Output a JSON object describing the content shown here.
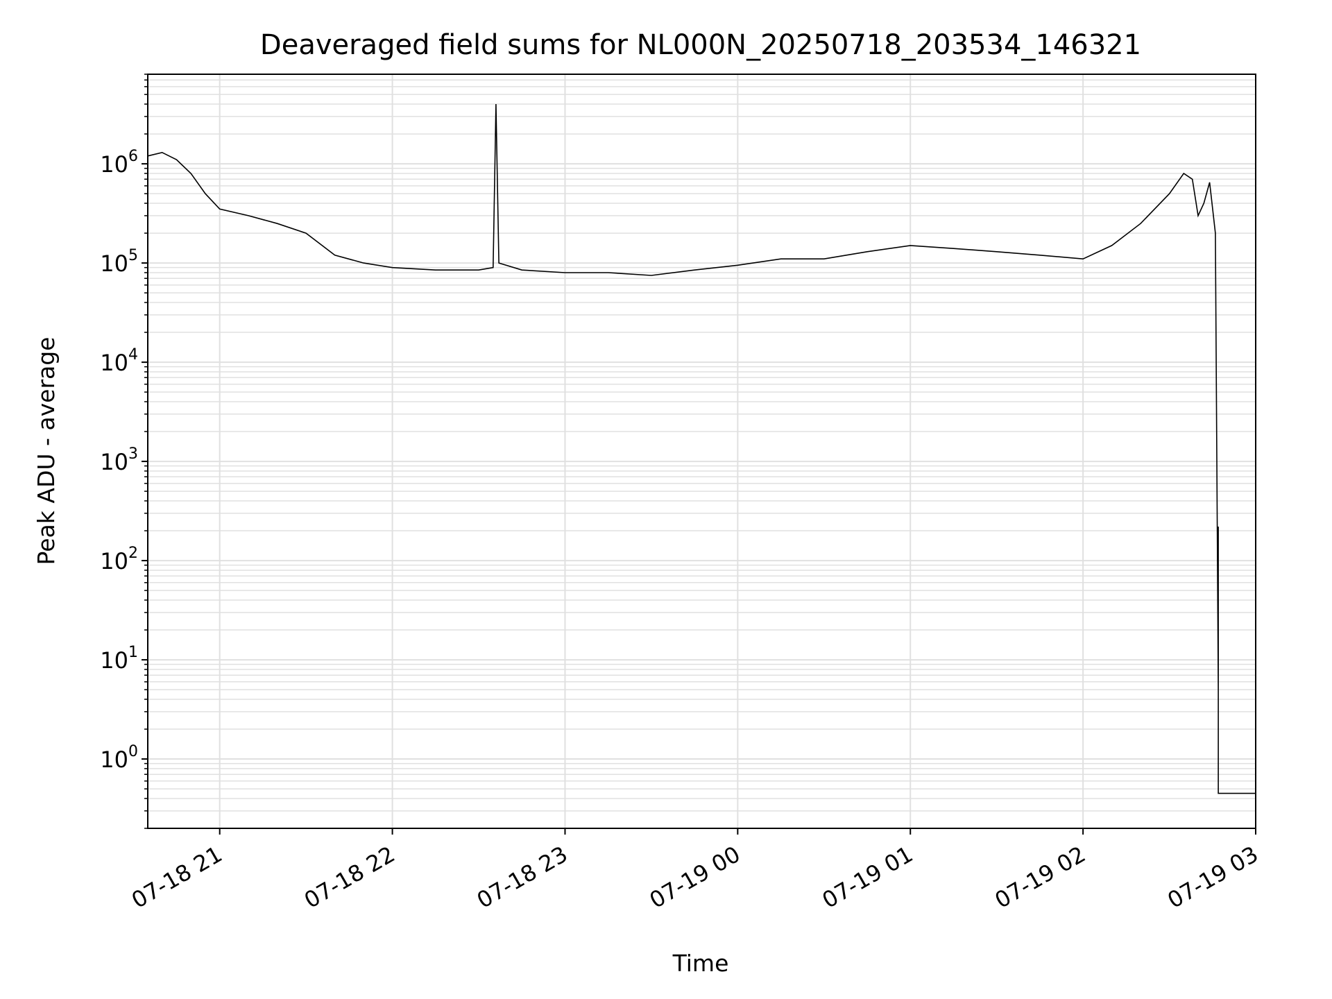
{
  "chart_data": {
    "type": "line",
    "title": "Deaveraged field sums for NL000N_20250718_203534_146321",
    "xlabel": "Time",
    "ylabel": "Peak ADU - average",
    "yscale": "log",
    "ylim": [
      0.2,
      8000000
    ],
    "xlim": [
      "2025-07-18 20:35",
      "2025-07-19 03:00"
    ],
    "grid": true,
    "legend": "none",
    "line_color": "#000000",
    "grid_color": "#e0e0e0",
    "x_ticks": [
      {
        "value": "2025-07-18 21:00",
        "label": "07-18 21"
      },
      {
        "value": "2025-07-18 22:00",
        "label": "07-18 22"
      },
      {
        "value": "2025-07-18 23:00",
        "label": "07-18 23"
      },
      {
        "value": "2025-07-19 00:00",
        "label": "07-19 00"
      },
      {
        "value": "2025-07-19 01:00",
        "label": "07-19 01"
      },
      {
        "value": "2025-07-19 02:00",
        "label": "07-19 02"
      },
      {
        "value": "2025-07-19 03:00",
        "label": "07-19 03"
      }
    ],
    "y_ticks": [
      {
        "value": 1,
        "base": "10",
        "exp": "0"
      },
      {
        "value": 10,
        "base": "10",
        "exp": "1"
      },
      {
        "value": 100,
        "base": "10",
        "exp": "2"
      },
      {
        "value": 1000,
        "base": "10",
        "exp": "3"
      },
      {
        "value": 10000,
        "base": "10",
        "exp": "4"
      },
      {
        "value": 100000,
        "base": "10",
        "exp": "5"
      },
      {
        "value": 1000000,
        "base": "10",
        "exp": "6"
      }
    ],
    "series": [
      {
        "x": [
          "2025-07-18 20:35",
          "2025-07-18 20:40",
          "2025-07-18 20:45",
          "2025-07-18 20:50",
          "2025-07-18 20:55",
          "2025-07-18 21:00",
          "2025-07-18 21:10",
          "2025-07-18 21:20",
          "2025-07-18 21:30",
          "2025-07-18 21:40",
          "2025-07-18 21:50",
          "2025-07-18 22:00",
          "2025-07-18 22:15",
          "2025-07-18 22:30",
          "2025-07-18 22:35",
          "2025-07-18 22:36",
          "2025-07-18 22:37",
          "2025-07-18 22:45",
          "2025-07-18 23:00",
          "2025-07-18 23:15",
          "2025-07-18 23:30",
          "2025-07-18 23:45",
          "2025-07-19 00:00",
          "2025-07-19 00:15",
          "2025-07-19 00:30",
          "2025-07-19 00:45",
          "2025-07-19 01:00",
          "2025-07-19 01:15",
          "2025-07-19 01:30",
          "2025-07-19 01:45",
          "2025-07-19 02:00",
          "2025-07-19 02:10",
          "2025-07-19 02:20",
          "2025-07-19 02:30",
          "2025-07-19 02:35",
          "2025-07-19 02:38",
          "2025-07-19 02:40",
          "2025-07-19 02:42",
          "2025-07-19 02:44",
          "2025-07-19 02:46",
          "2025-07-19 02:47",
          "2025-07-19 02:47",
          "2025-07-19 02:47",
          "2025-07-19 02:48",
          "2025-07-19 02:55",
          "2025-07-19 03:00"
        ],
        "y": [
          1200000,
          1300000,
          1100000,
          800000,
          500000,
          350000,
          300000,
          250000,
          200000,
          120000,
          100000,
          90000,
          85000,
          85000,
          90000,
          4000000,
          100000,
          85000,
          80000,
          80000,
          75000,
          85000,
          95000,
          110000,
          110000,
          130000,
          150000,
          140000,
          130000,
          120000,
          110000,
          150000,
          250000,
          500000,
          800000,
          700000,
          300000,
          400000,
          650000,
          200000,
          5,
          220,
          0.45,
          0.45,
          0.45,
          0.45
        ]
      }
    ]
  }
}
